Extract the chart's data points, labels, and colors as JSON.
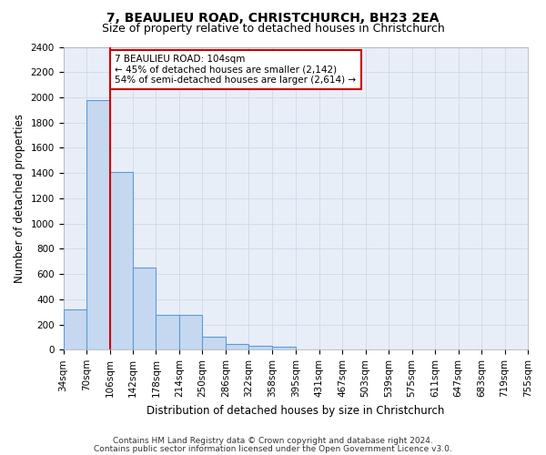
{
  "title": "7, BEAULIEU ROAD, CHRISTCHURCH, BH23 2EA",
  "subtitle": "Size of property relative to detached houses in Christchurch",
  "xlabel": "Distribution of detached houses by size in Christchurch",
  "ylabel": "Number of detached properties",
  "footer_line1": "Contains HM Land Registry data © Crown copyright and database right 2024.",
  "footer_line2": "Contains public sector information licensed under the Open Government Licence v3.0.",
  "bin_labels": [
    "34sqm",
    "70sqm",
    "106sqm",
    "142sqm",
    "178sqm",
    "214sqm",
    "250sqm",
    "286sqm",
    "322sqm",
    "358sqm",
    "395sqm",
    "431sqm",
    "467sqm",
    "503sqm",
    "539sqm",
    "575sqm",
    "611sqm",
    "647sqm",
    "683sqm",
    "719sqm",
    "755sqm"
  ],
  "bar_values": [
    320,
    1980,
    1410,
    650,
    275,
    275,
    100,
    45,
    30,
    25,
    0,
    0,
    0,
    0,
    0,
    0,
    0,
    0,
    0,
    0
  ],
  "bar_color": "#c5d8f0",
  "bar_edge_color": "#5b9bd5",
  "bin_edges": [
    34,
    70,
    106,
    142,
    178,
    214,
    250,
    286,
    322,
    358,
    395,
    431,
    467,
    503,
    539,
    575,
    611,
    647,
    683,
    719,
    755
  ],
  "vline_color": "#cc0000",
  "vline_x": 106,
  "annotation_line1": "7 BEAULIEU ROAD: 104sqm",
  "annotation_line2": "← 45% of detached houses are smaller (2,142)",
  "annotation_line3": "54% of semi-detached houses are larger (2,614) →",
  "annotation_box_facecolor": "#ffffff",
  "annotation_box_edgecolor": "#cc0000",
  "grid_color": "#d0d8e8",
  "background_color": "#e8eef8",
  "ylim": [
    0,
    2400
  ],
  "yticks": [
    0,
    200,
    400,
    600,
    800,
    1000,
    1200,
    1400,
    1600,
    1800,
    2000,
    2200,
    2400
  ],
  "title_fontsize": 10,
  "subtitle_fontsize": 9,
  "axis_label_fontsize": 8.5,
  "tick_fontsize": 7.5,
  "annotation_fontsize": 7.5,
  "footer_fontsize": 6.5
}
